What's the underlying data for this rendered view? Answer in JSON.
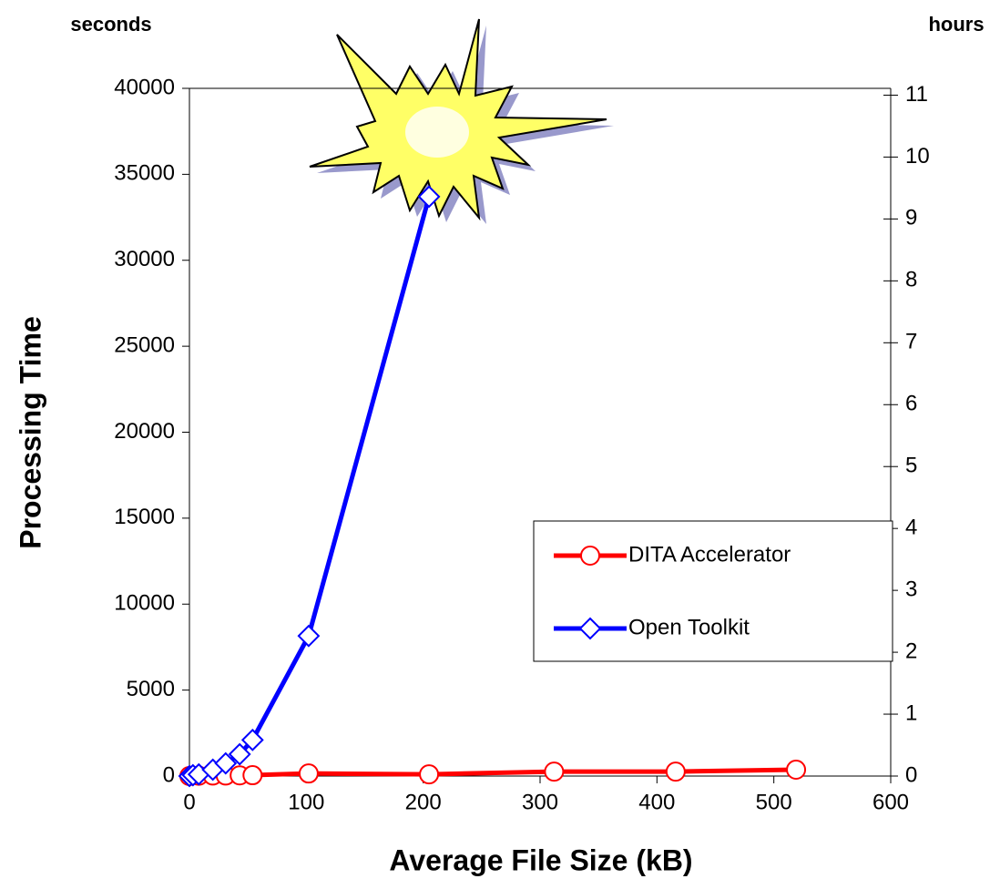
{
  "chart_data": {
    "type": "line",
    "y_unit_label": "seconds",
    "y2_unit_label": "hours",
    "y_label": "Processing Time",
    "x_label": "Average File Size (kB)",
    "xlim": [
      0,
      600
    ],
    "xticks": [
      0,
      100,
      200,
      300,
      400,
      500,
      600
    ],
    "ylim": [
      0,
      40000
    ],
    "yticks": [
      0,
      5000,
      10000,
      15000,
      20000,
      25000,
      30000,
      35000,
      40000
    ],
    "y2lim": [
      0,
      11.11
    ],
    "y2ticks": [
      0,
      1,
      2,
      3,
      4,
      5,
      6,
      7,
      8,
      9,
      10,
      11
    ],
    "legend": "lower-right",
    "series": [
      {
        "name": "DITA Accelerator",
        "color": "#ff0000",
        "marker": "circle",
        "x": [
          0,
          8,
          20,
          31,
          43,
          54,
          102,
          205,
          312,
          416,
          519
        ],
        "values": [
          0,
          20,
          30,
          30,
          40,
          50,
          150,
          100,
          260,
          260,
          370
        ]
      },
      {
        "name": "Open Toolkit",
        "color": "#0000ff",
        "marker": "diamond",
        "x": [
          0,
          3,
          8,
          20,
          31,
          43,
          54,
          102,
          205
        ],
        "values": [
          0,
          50,
          100,
          370,
          740,
          1270,
          2100,
          8150,
          33700
        ]
      }
    ]
  }
}
